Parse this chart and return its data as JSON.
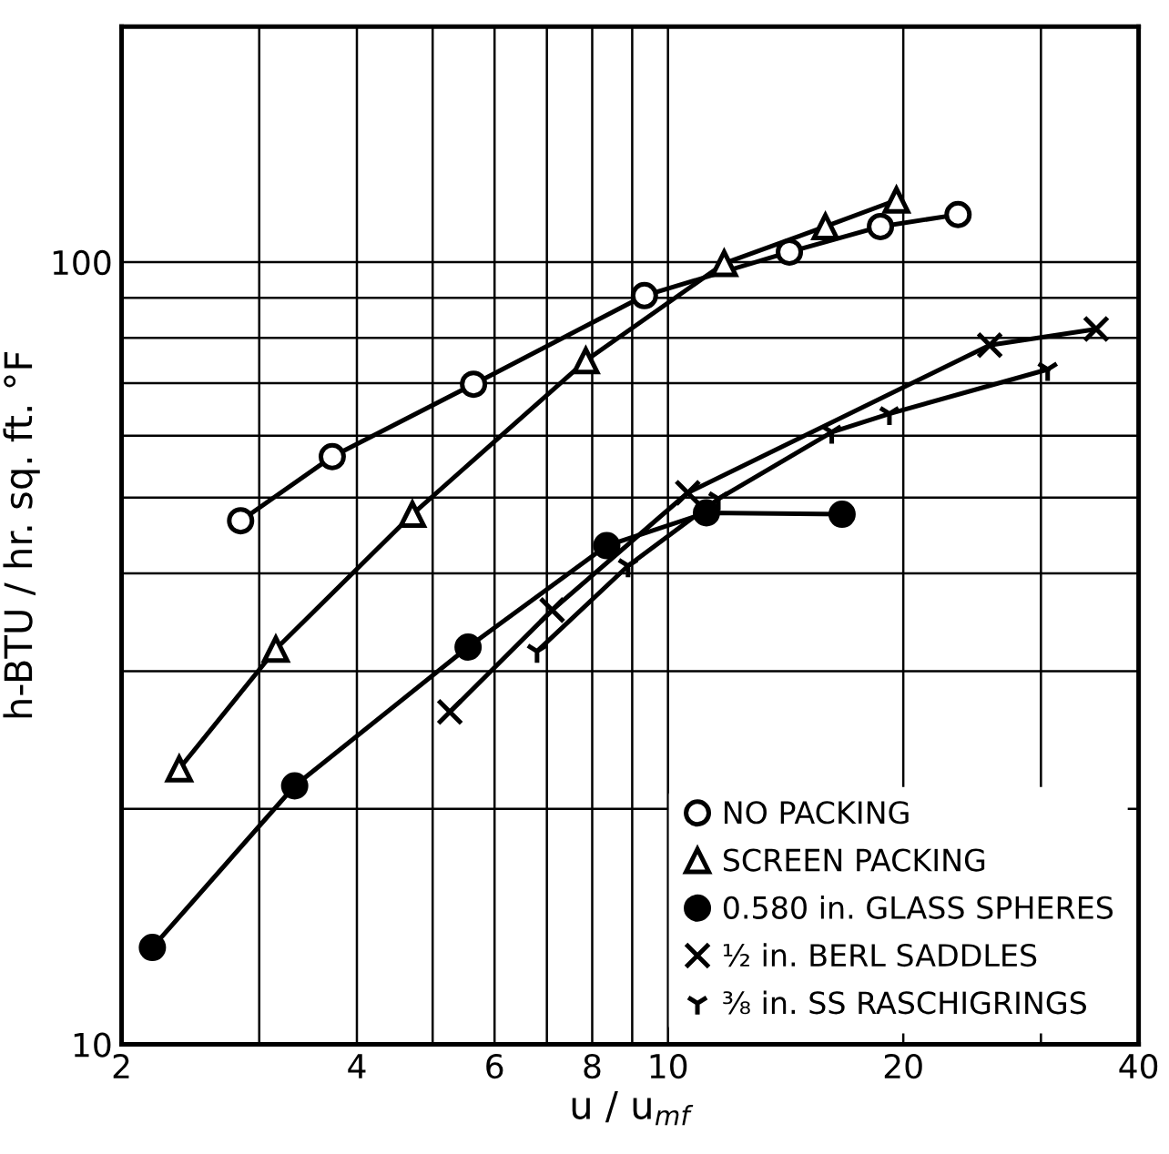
{
  "chart_data": {
    "type": "line",
    "xlabel": "u / u$_{mf}$",
    "ylabel": "h-BTU / hr. sq. ft. °F",
    "log": "xy",
    "xlim": [
      2,
      40
    ],
    "ylim": [
      10,
      200
    ],
    "xticks": [
      2,
      {
        "value": 3,
        "label": null
      },
      4,
      {
        "value": 5,
        "label": null
      },
      6,
      {
        "value": 7,
        "label": null
      },
      8,
      {
        "value": 9,
        "label": null
      },
      10,
      20,
      {
        "value": 30,
        "label": null
      },
      40
    ],
    "yticks": [
      10,
      {
        "value": 20,
        "label": null
      },
      {
        "value": 30,
        "label": null
      },
      {
        "value": 40,
        "label": null
      },
      {
        "value": 50,
        "label": null
      },
      {
        "value": 60,
        "label": null
      },
      {
        "value": 70,
        "label": null
      },
      {
        "value": 80,
        "label": null
      },
      {
        "value": 90,
        "label": null
      },
      100
    ],
    "grid": true,
    "legend": "bottom right",
    "line_style": "solid",
    "series": [
      {
        "name": "NO PACKING",
        "color": "#000000",
        "marker": "circle",
        "x": [
          2.84,
          3.72,
          5.64,
          9.33,
          14.3,
          18.7,
          23.5
        ],
        "values": [
          46.7,
          56.4,
          69.8,
          90.6,
          103,
          111,
          115
        ]
      },
      {
        "name": "SCREEN PACKING",
        "color": "#000000",
        "marker": "triangle",
        "x": [
          2.37,
          3.15,
          4.71,
          7.85,
          11.8,
          15.9,
          19.6
        ],
        "values": [
          22.5,
          32.0,
          47.6,
          74.8,
          99.6,
          111,
          120
        ]
      },
      {
        "name": "0.580 in. GLASS SPHERES",
        "color": "#000000",
        "marker": "dot",
        "x": [
          2.19,
          3.33,
          5.55,
          8.35,
          11.2,
          16.7
        ],
        "values": [
          13.3,
          21.4,
          32.2,
          43.4,
          47.8,
          47.6
        ]
      },
      {
        "name": "½ in. BERL SADDLES",
        "color": "#000000",
        "marker": "cross",
        "x": [
          5.26,
          7.11,
          10.6,
          25.8,
          35.3
        ],
        "values": [
          26.6,
          35.9,
          50.7,
          78.3,
          82.1
        ]
      },
      {
        "name": "⅜ in. SS RASCHIGRINGS",
        "color": "#000000",
        "marker": "cross",
        "x": [
          6.8,
          8.89,
          11.6,
          16.2,
          19.2,
          30.6
        ],
        "values": [
          31.8,
          40.9,
          49.8,
          60.6,
          64.0,
          72.9
        ]
      }
    ]
  }
}
